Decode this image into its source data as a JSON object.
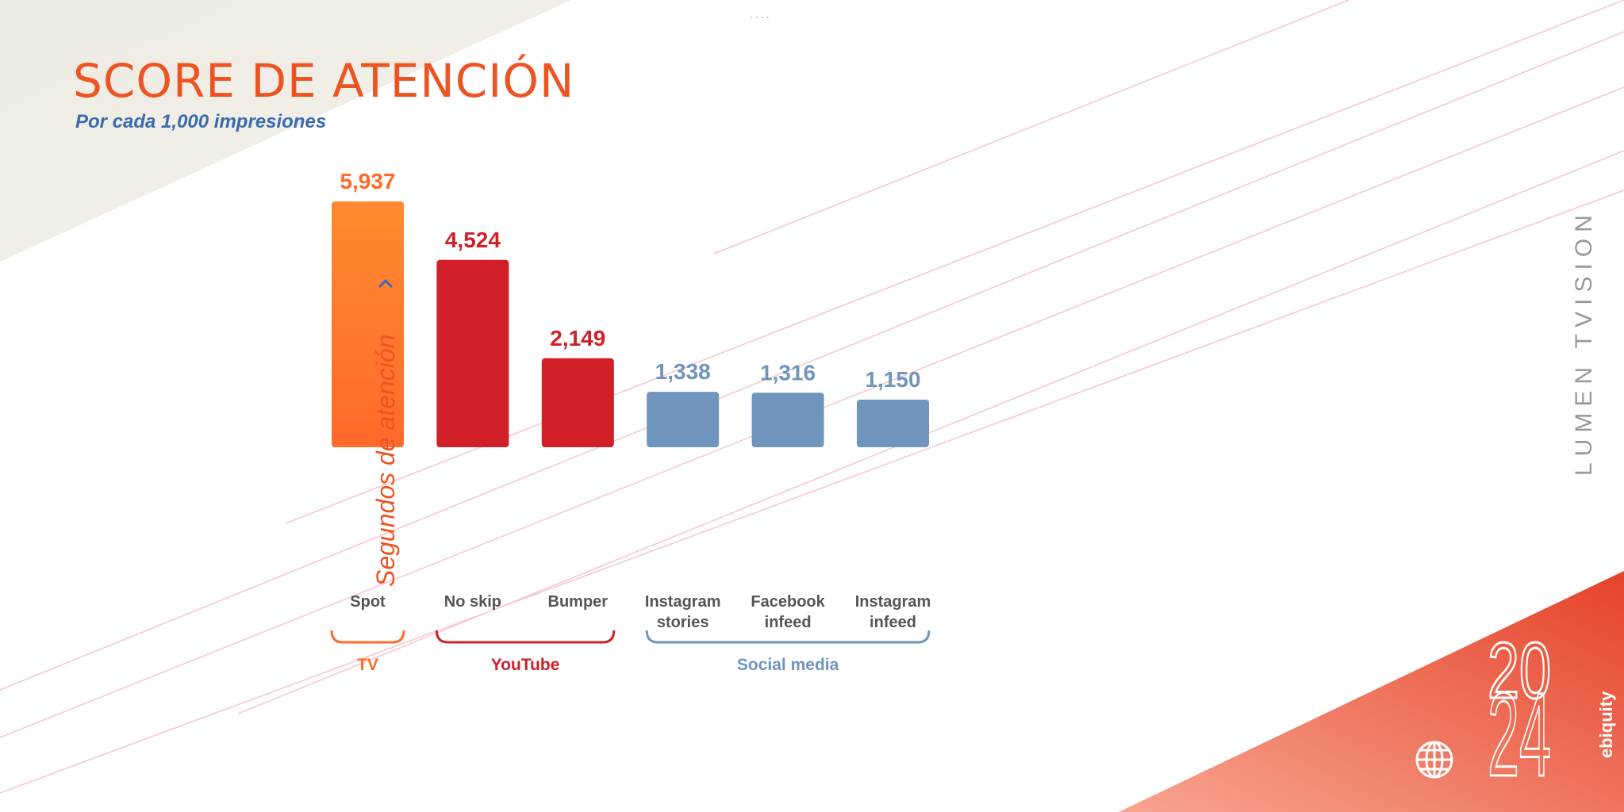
{
  "header": {
    "title": "SCORE DE ATENCIÓN",
    "subtitle": "Por cada 1,000 impresiones",
    "dots": "...."
  },
  "branding": {
    "lumen": "LUMEN TVISION",
    "ebiquity": "ebiquity",
    "year": "2024"
  },
  "colors": {
    "tv": "#ff6a2a",
    "youtube": "#d01f27",
    "social": "#7095bd",
    "title": "#ee5322"
  },
  "chart_data": {
    "type": "bar",
    "title": "SCORE DE ATENCIÓN",
    "subtitle": "Por cada 1,000 impresiones",
    "ylabel": "Segundos de atención",
    "categories": [
      [
        "Spot"
      ],
      [
        "No skip"
      ],
      [
        "Bumper"
      ],
      [
        "Instagram",
        "stories"
      ],
      [
        "Facebook",
        "infeed"
      ],
      [
        "Instagram",
        "infeed"
      ]
    ],
    "values": [
      5937,
      4524,
      2149,
      1338,
      1316,
      1150
    ],
    "value_labels": [
      "5,937",
      "4,524",
      "2,149",
      "1,338",
      "1,316",
      "1,150"
    ],
    "groups": [
      {
        "name": "TV",
        "from": 0,
        "to": 0,
        "color": "#ff6a2a"
      },
      {
        "name": "YouTube",
        "from": 1,
        "to": 2,
        "color": "#d01f27"
      },
      {
        "name": "Social media",
        "from": 3,
        "to": 5,
        "color": "#7095bd"
      }
    ],
    "ylim": [
      0,
      6000
    ],
    "grid": false
  }
}
